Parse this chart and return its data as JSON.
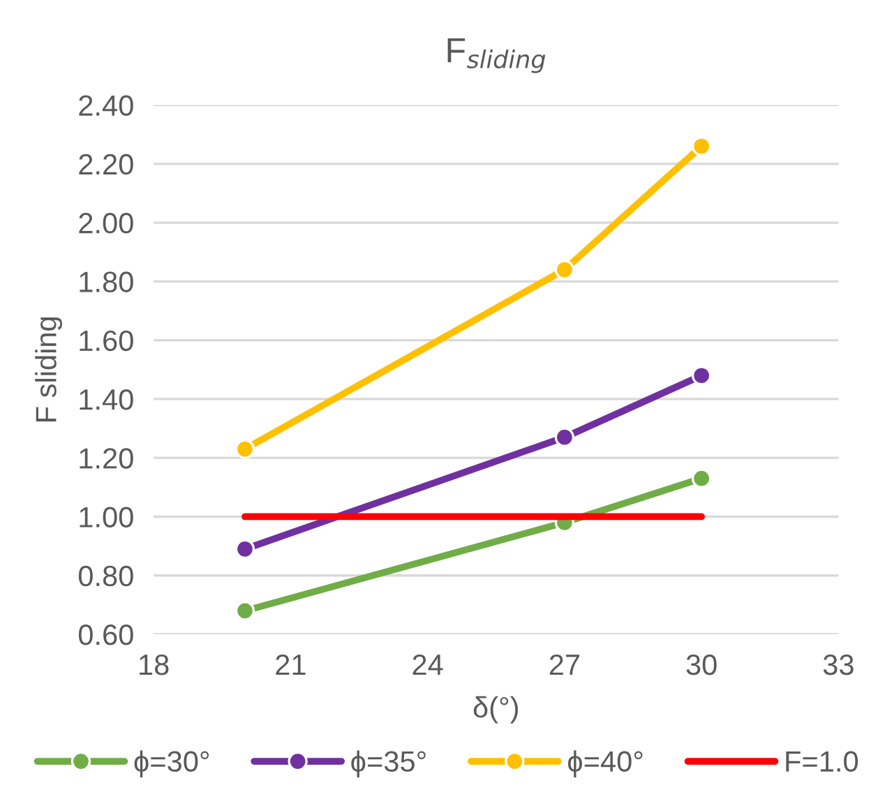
{
  "chart_data": {
    "type": "line",
    "title": "F$_{sliding}$",
    "xlabel": "δ(°)",
    "ylabel": "F sliding",
    "x": [
      20,
      27,
      30
    ],
    "series": [
      {
        "name": "ϕ=30°",
        "color": "#70ad47",
        "values": [
          0.68,
          0.98,
          1.13
        ]
      },
      {
        "name": "ϕ=35°",
        "color": "#7030a0",
        "values": [
          0.89,
          1.27,
          1.48
        ]
      },
      {
        "name": "ϕ=40°",
        "color": "#ffc000",
        "values": [
          1.23,
          1.84,
          2.26
        ]
      },
      {
        "name": "F=1.0",
        "color": "#ff0000",
        "values": [
          1.0,
          1.0,
          1.0
        ],
        "marker": "none"
      }
    ],
    "xlim": [
      18,
      33
    ],
    "xticks": [
      18,
      21,
      24,
      27,
      30,
      33
    ],
    "ylim": [
      0.6,
      2.4
    ],
    "yticks": [
      {
        "value": 0.6,
        "label": "0.60"
      },
      {
        "value": 0.8,
        "label": "0.80"
      },
      {
        "value": 1.0,
        "label": "1.00"
      },
      {
        "value": 1.2,
        "label": "1.20"
      },
      {
        "value": 1.4,
        "label": "1.40"
      },
      {
        "value": 1.6,
        "label": "1.60"
      },
      {
        "value": 1.8,
        "label": "1.80"
      },
      {
        "value": 2.0,
        "label": "2.00"
      },
      {
        "value": 2.2,
        "label": "2.20"
      },
      {
        "value": 2.4,
        "label": "2.40"
      }
    ],
    "grid": "y",
    "legend": "bottom",
    "marker": "circle"
  }
}
